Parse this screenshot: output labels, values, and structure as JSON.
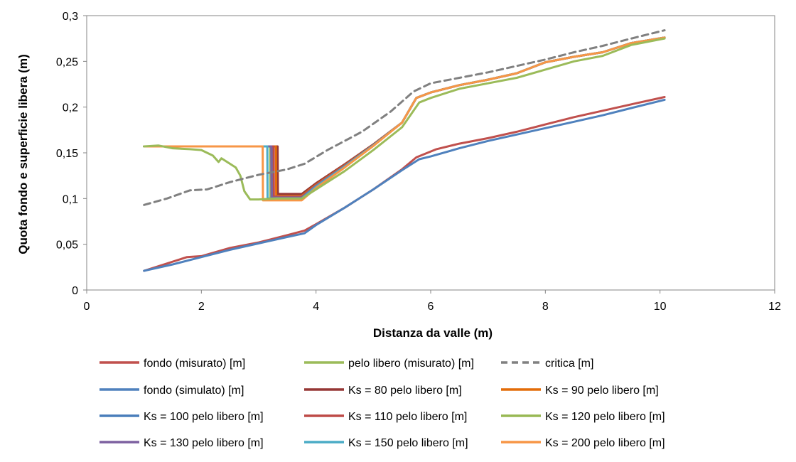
{
  "chart_data": {
    "type": "line",
    "xlabel": "Distanza da valle (m)",
    "ylabel": "Quota fondo e superficie libera (m)",
    "xlim": [
      0,
      12
    ],
    "ylim": [
      0,
      0.3
    ],
    "x_ticks": [
      0,
      2,
      4,
      6,
      8,
      10,
      12
    ],
    "x_tick_labels": [
      "0",
      "2",
      "4",
      "6",
      "8",
      "10",
      "12"
    ],
    "y_ticks": [
      0,
      0.05,
      0.1,
      0.15,
      0.2,
      0.25,
      0.3
    ],
    "y_tick_labels": [
      "0",
      "0,05",
      "0,1",
      "0,15",
      "0,2",
      "0,25",
      "0,3"
    ],
    "grid": false,
    "legend_position": "bottom",
    "series": [
      {
        "name": "fondo (misurato) [m]",
        "color": "#c0504d",
        "dash": false,
        "x": [
          1.0,
          1.75,
          2.0,
          2.5,
          3.0,
          3.5,
          3.8,
          4.0,
          4.5,
          5.0,
          5.5,
          5.75,
          6.1,
          6.5,
          7.0,
          7.5,
          8.0,
          8.5,
          9.0,
          9.5,
          10.08
        ],
        "y": [
          0.021,
          0.036,
          0.037,
          0.046,
          0.052,
          0.06,
          0.065,
          0.072,
          0.09,
          0.11,
          0.132,
          0.145,
          0.154,
          0.16,
          0.166,
          0.173,
          0.181,
          0.189,
          0.196,
          0.203,
          0.211
        ]
      },
      {
        "name": "pelo libero (misurato) [m]",
        "color": "#9bbb59",
        "dash": false,
        "x": [
          1.0,
          1.25,
          1.5,
          1.8,
          2.0,
          2.2,
          2.3,
          2.35,
          2.45,
          2.6,
          2.68,
          2.75,
          2.85,
          3.0,
          3.3,
          3.5,
          3.75,
          4.0,
          4.5,
          5.0,
          5.5,
          5.8,
          6.0,
          6.5,
          7.0,
          7.5,
          8.0,
          8.5,
          9.0,
          9.5,
          10.08
        ],
        "y": [
          0.157,
          0.158,
          0.155,
          0.154,
          0.153,
          0.147,
          0.14,
          0.144,
          0.14,
          0.134,
          0.125,
          0.108,
          0.099,
          0.099,
          0.1,
          0.1,
          0.1,
          0.11,
          0.13,
          0.153,
          0.178,
          0.205,
          0.21,
          0.22,
          0.226,
          0.232,
          0.241,
          0.25,
          0.256,
          0.268,
          0.275
        ]
      },
      {
        "name": "critica [m]",
        "color": "#808080",
        "dash": true,
        "x": [
          1.0,
          1.4,
          1.8,
          2.1,
          2.5,
          3.0,
          3.5,
          3.8,
          4.2,
          4.8,
          5.3,
          5.7,
          6.0,
          6.5,
          7.0,
          7.5,
          8.0,
          8.5,
          9.0,
          9.5,
          10.08
        ],
        "y": [
          0.093,
          0.1,
          0.109,
          0.11,
          0.118,
          0.126,
          0.132,
          0.138,
          0.153,
          0.173,
          0.195,
          0.217,
          0.226,
          0.232,
          0.238,
          0.245,
          0.252,
          0.26,
          0.267,
          0.275,
          0.284
        ]
      },
      {
        "name": "fondo (simulato) [m]",
        "color": "#4f81bd",
        "dash": false,
        "x": [
          1.0,
          1.5,
          2.0,
          2.5,
          3.0,
          3.5,
          3.8,
          4.0,
          4.5,
          5.0,
          5.5,
          5.8,
          6.0,
          6.5,
          7.0,
          7.5,
          8.0,
          8.5,
          9.0,
          9.5,
          10.08
        ],
        "y": [
          0.021,
          0.028,
          0.036,
          0.044,
          0.051,
          0.058,
          0.062,
          0.071,
          0.09,
          0.11,
          0.131,
          0.143,
          0.146,
          0.155,
          0.163,
          0.17,
          0.177,
          0.184,
          0.191,
          0.199,
          0.208
        ]
      },
      {
        "name": "Ks = 80 pelo libero [m]",
        "color": "#953735",
        "dash": false,
        "jump_x": 3.33,
        "jump_low": 0.105
      },
      {
        "name": "Ks = 90 pelo libero [m]",
        "color": "#e36c09",
        "dash": false,
        "jump_x": 3.3,
        "jump_low": 0.103
      },
      {
        "name": "Ks = 100 pelo libero [m]",
        "color": "#4a7ebb",
        "dash": false,
        "jump_x": 3.24,
        "jump_low": 0.102
      },
      {
        "name": "Ks = 110 pelo libero [m]",
        "color": "#be4b48",
        "dash": false,
        "jump_x": 3.26,
        "jump_low": 0.102
      },
      {
        "name": "Ks = 120 pelo libero [m]",
        "color": "#98b954",
        "dash": false,
        "jump_x": 3.2,
        "jump_low": 0.101
      },
      {
        "name": "Ks = 130 pelo libero [m]",
        "color": "#7d60a0",
        "dash": false,
        "jump_x": 3.22,
        "jump_low": 0.101
      },
      {
        "name": "Ks = 150 pelo libero [m]",
        "color": "#4bacc6",
        "dash": false,
        "jump_x": 3.15,
        "jump_low": 0.1
      },
      {
        "name": "Ks = 200 pelo libero [m]",
        "color": "#f79646",
        "dash": false,
        "jump_x": 3.07,
        "jump_low": 0.098
      }
    ],
    "simulated_profile": {
      "upstream_level": 0.157,
      "x_start": 1.0,
      "x_after_jump": [
        3.75,
        4.0,
        4.5,
        5.0,
        5.5,
        5.75,
        6.0,
        6.5,
        7.0,
        7.5,
        8.0,
        8.5,
        9.0,
        9.5,
        10.08
      ],
      "y_after_jump": [
        0.1,
        0.113,
        0.135,
        0.158,
        0.183,
        0.21,
        0.216,
        0.224,
        0.23,
        0.237,
        0.249,
        0.255,
        0.26,
        0.27,
        0.276
      ]
    }
  }
}
